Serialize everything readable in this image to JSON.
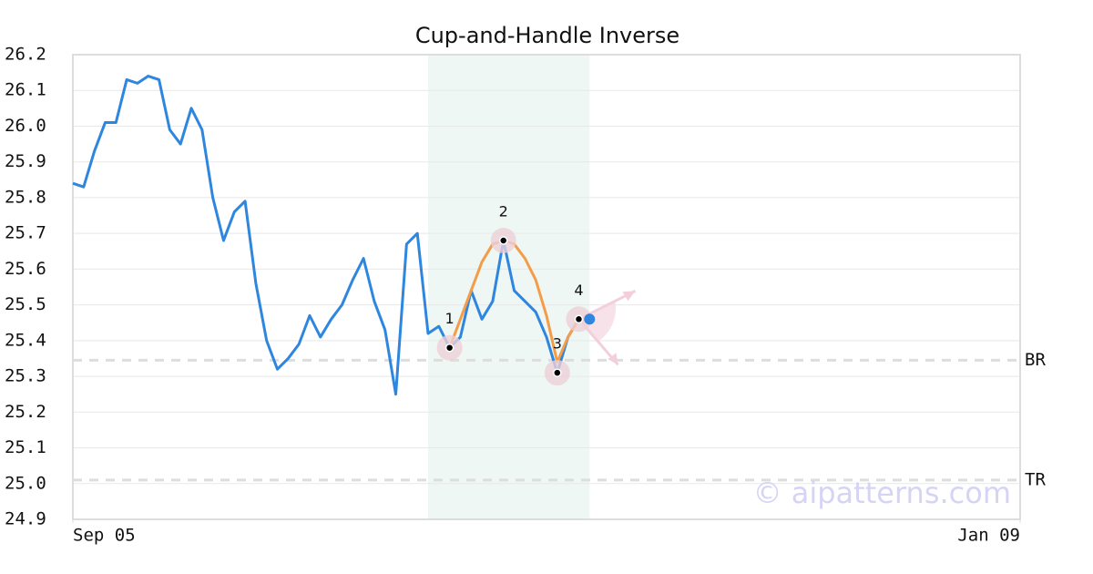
{
  "chart_data": {
    "type": "line",
    "title": "Cup-and-Handle Inverse",
    "watermark": "© aipatterns.com",
    "x": [
      0,
      1,
      2,
      3,
      4,
      5,
      6,
      7,
      8,
      9,
      10,
      11,
      12,
      13,
      14,
      15,
      16,
      17,
      18,
      19,
      20,
      21,
      22,
      23,
      24,
      25,
      26,
      27,
      28,
      29,
      30,
      31,
      32,
      33,
      34,
      35,
      36,
      37,
      38,
      39,
      40,
      41,
      42,
      43,
      44,
      45,
      46,
      47,
      48
    ],
    "xlim": [
      0,
      88
    ],
    "xticks": [
      {
        "value": 0,
        "label": "Sep 05"
      },
      {
        "value": 88,
        "label": "Jan 09"
      }
    ],
    "ylim": [
      24.9,
      26.2
    ],
    "yticks": [
      24.9,
      {
        "value": 25,
        "label": "25.0"
      },
      25.1,
      25.2,
      25.3,
      25.4,
      25.5,
      25.6,
      25.7,
      25.8,
      25.9,
      {
        "value": 26,
        "label": "26.0"
      },
      26.1,
      26.2
    ],
    "grid": true,
    "series": [
      {
        "color": "#2e86de",
        "values": [
          25.84,
          25.83,
          25.93,
          26.01,
          26.01,
          26.13,
          26.12,
          26.14,
          26.13,
          25.99,
          25.95,
          26.05,
          25.99,
          25.8,
          25.68,
          25.76,
          25.79,
          25.56,
          25.4,
          25.32,
          25.35,
          25.39,
          25.47,
          25.41,
          25.46,
          25.5,
          25.57,
          25.63,
          25.51,
          25.43,
          25.25,
          25.67,
          25.7,
          25.42,
          25.44,
          25.38,
          25.41,
          25.54,
          25.46,
          25.51,
          25.68,
          25.54,
          25.51,
          25.48,
          25.41,
          25.31,
          25.41,
          25.46,
          25.46
        ]
      },
      {
        "color": "#f39c4a",
        "values": [
          null,
          null,
          null,
          null,
          null,
          null,
          null,
          null,
          null,
          null,
          null,
          null,
          null,
          null,
          null,
          null,
          null,
          null,
          null,
          null,
          null,
          null,
          null,
          null,
          null,
          null,
          null,
          null,
          null,
          null,
          null,
          null,
          null,
          null,
          null,
          25.38,
          25.46,
          25.54,
          25.62,
          25.67,
          25.68,
          25.67,
          25.63,
          25.57,
          25.47,
          25.34,
          25.41,
          25.46,
          null
        ]
      }
    ],
    "highlight": [
      33,
      48
    ],
    "pattern_points": [
      {
        "label": "1",
        "x": 35,
        "y": 25.38
      },
      {
        "label": "2",
        "x": 40,
        "y": 25.68
      },
      {
        "label": "3",
        "x": 45,
        "y": 25.31
      },
      {
        "label": "4",
        "x": 47,
        "y": 25.46
      }
    ],
    "levels": [
      {
        "label": "BR",
        "value": 25.345
      },
      {
        "label": "TR",
        "value": 25.01
      }
    ]
  }
}
